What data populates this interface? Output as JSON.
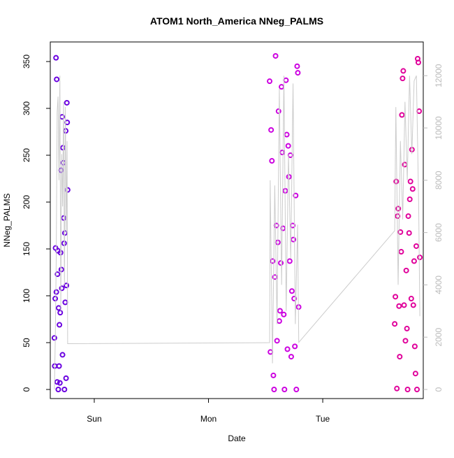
{
  "chart_data": {
    "type": "scatter",
    "title": "ATOM1 North_America NNeg_PALMS",
    "x_label": "Date",
    "y_label": "NNeg_PALMS",
    "xlim": [
      -0.385,
      2.88
    ],
    "xticks": [
      {
        "value": 0,
        "label": "Sun"
      },
      {
        "value": 1,
        "label": "Mon"
      },
      {
        "value": 2,
        "label": "Tue"
      }
    ],
    "ylim": [
      -9.7,
      370.9
    ],
    "yticks": [
      0,
      50,
      100,
      150,
      200,
      250,
      300,
      350
    ],
    "y2lim": [
      -348,
      13289
    ],
    "y2ticks": [
      0,
      2000,
      4000,
      6000,
      8000,
      10000,
      12000
    ],
    "series": [
      {
        "color": "#6a00e0",
        "x": [
          -0.349,
          -0.346,
          -0.342,
          -0.339,
          -0.335,
          -0.332,
          -0.329,
          -0.325,
          -0.322,
          -0.318,
          -0.315,
          -0.312,
          -0.308,
          -0.305,
          -0.301,
          -0.298,
          -0.295,
          -0.291,
          -0.288,
          -0.284,
          -0.281,
          -0.278,
          -0.274,
          -0.271,
          -0.267,
          -0.264,
          -0.261,
          -0.257,
          -0.254,
          -0.25,
          -0.247,
          -0.244,
          -0.24,
          -0.237,
          -0.233
        ],
        "values": [
          55,
          25,
          97,
          151,
          354,
          104,
          331,
          8,
          123,
          148,
          0,
          87,
          25,
          69,
          7,
          82,
          146,
          234,
          128,
          108,
          291,
          37,
          258,
          242,
          183,
          156,
          0,
          167,
          93,
          276,
          12,
          111,
          306,
          285,
          213
        ]
      },
      {
        "color": "#cc00e0",
        "x": [
          1.535,
          1.542,
          1.548,
          1.555,
          1.561,
          1.568,
          1.574,
          1.581,
          1.587,
          1.594,
          1.6,
          1.607,
          1.613,
          1.62,
          1.626,
          1.633,
          1.639,
          1.646,
          1.652,
          1.659,
          1.665,
          1.672,
          1.678,
          1.685,
          1.691,
          1.698,
          1.704,
          1.711,
          1.717,
          1.724,
          1.73,
          1.737,
          1.743,
          1.75,
          1.756,
          1.763,
          1.769,
          1.776,
          1.782,
          1.789
        ],
        "values": [
          329,
          40,
          277,
          244,
          137,
          15,
          0,
          120,
          356,
          175,
          52,
          157,
          297,
          73,
          84,
          135,
          323,
          253,
          172,
          80,
          0,
          212,
          330,
          272,
          43,
          260,
          227,
          137,
          250,
          35,
          105,
          175,
          160,
          97,
          46,
          207,
          0,
          345,
          338,
          88
        ]
      },
      {
        "color": "#e0009a",
        "x": [
          2.63,
          2.636,
          2.643,
          2.649,
          2.655,
          2.661,
          2.668,
          2.674,
          2.68,
          2.687,
          2.693,
          2.699,
          2.705,
          2.712,
          2.718,
          2.724,
          2.731,
          2.737,
          2.743,
          2.749,
          2.756,
          2.762,
          2.768,
          2.775,
          2.781,
          2.787,
          2.793,
          2.8,
          2.806,
          2.812,
          2.819,
          2.825,
          2.831,
          2.837,
          2.844,
          2.85
        ],
        "values": [
          70,
          99,
          222,
          1,
          185,
          193,
          89,
          35,
          168,
          147,
          293,
          332,
          340,
          90,
          240,
          52,
          127,
          65,
          0,
          185,
          167,
          203,
          222,
          97,
          256,
          214,
          90,
          137,
          46,
          17,
          153,
          0,
          353,
          349,
          297,
          141
        ]
      },
      {
        "type": "line",
        "axis": "y2",
        "color": "#cccccc",
        "x": [
          -0.349,
          -0.341,
          -0.333,
          -0.325,
          -0.317,
          -0.309,
          -0.301,
          -0.293,
          -0.285,
          -0.277,
          -0.269,
          -0.261,
          -0.253,
          -0.245,
          -0.238,
          -0.233,
          1.535,
          1.54,
          1.56,
          1.58,
          1.6,
          1.62,
          1.64,
          1.66,
          1.68,
          1.7,
          1.72,
          1.74,
          1.76,
          1.78,
          1.79,
          2.63,
          2.64,
          2.66,
          2.68,
          2.7,
          2.72,
          2.74,
          2.76,
          2.78,
          2.8,
          2.82,
          2.84,
          2.85
        ],
        "values": [
          0,
          2000,
          5000,
          10600,
          11200,
          8000,
          12000,
          3000,
          9000,
          7000,
          11000,
          4000,
          10800,
          6000,
          9500,
          1750,
          1790,
          8000,
          1000,
          7800,
          2500,
          11500,
          4000,
          12000,
          3000,
          9000,
          5000,
          11700,
          2500,
          6300,
          1800,
          6070,
          10800,
          4000,
          9500,
          6500,
          11000,
          8000,
          12000,
          9000,
          11800,
          12000,
          7000,
          2800
        ]
      }
    ]
  }
}
